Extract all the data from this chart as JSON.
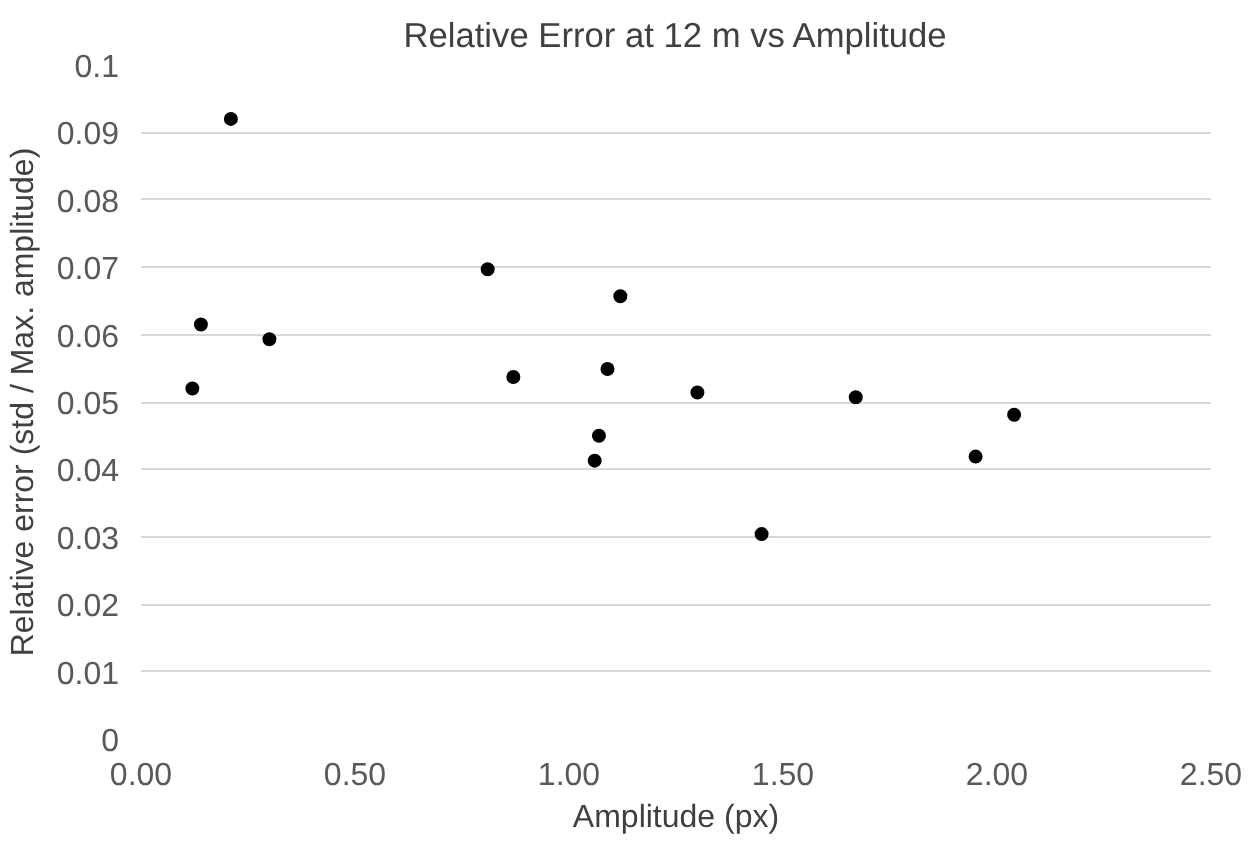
{
  "chart_data": {
    "type": "scatter",
    "title": "Relative Error at 12 m vs Amplitude",
    "xlabel": "Amplitude (px)",
    "ylabel": "Relative error (std / Max. amplitude)",
    "x": [
      0.12,
      0.14,
      0.21,
      0.3,
      0.81,
      0.87,
      1.06,
      1.07,
      1.09,
      1.12,
      1.3,
      1.45,
      1.67,
      1.95,
      2.04
    ],
    "series": [
      {
        "color": "#000000",
        "values": [
          0.052,
          0.0615,
          0.092,
          0.0593,
          0.0697,
          0.0537,
          0.0413,
          0.045,
          0.0549,
          0.0657,
          0.0514,
          0.0304,
          0.0507,
          0.0419,
          0.0481
        ]
      }
    ],
    "xlim": [
      0,
      2.5
    ],
    "ylim": [
      0,
      0.1
    ],
    "xticks": [
      {
        "value": 0,
        "label": "0.00"
      },
      {
        "value": 0.5,
        "label": "0.50"
      },
      {
        "value": 1,
        "label": "1.00"
      },
      {
        "value": 1.5,
        "label": "1.50"
      },
      {
        "value": 2,
        "label": "2.00"
      },
      {
        "value": 2.5,
        "label": "2.50"
      }
    ],
    "yticks": [
      0,
      0.01,
      0.02,
      0.03,
      0.04,
      0.05,
      0.06,
      0.07,
      0.08,
      0.09,
      0.1
    ],
    "grid": "y",
    "marker": "circle"
  }
}
